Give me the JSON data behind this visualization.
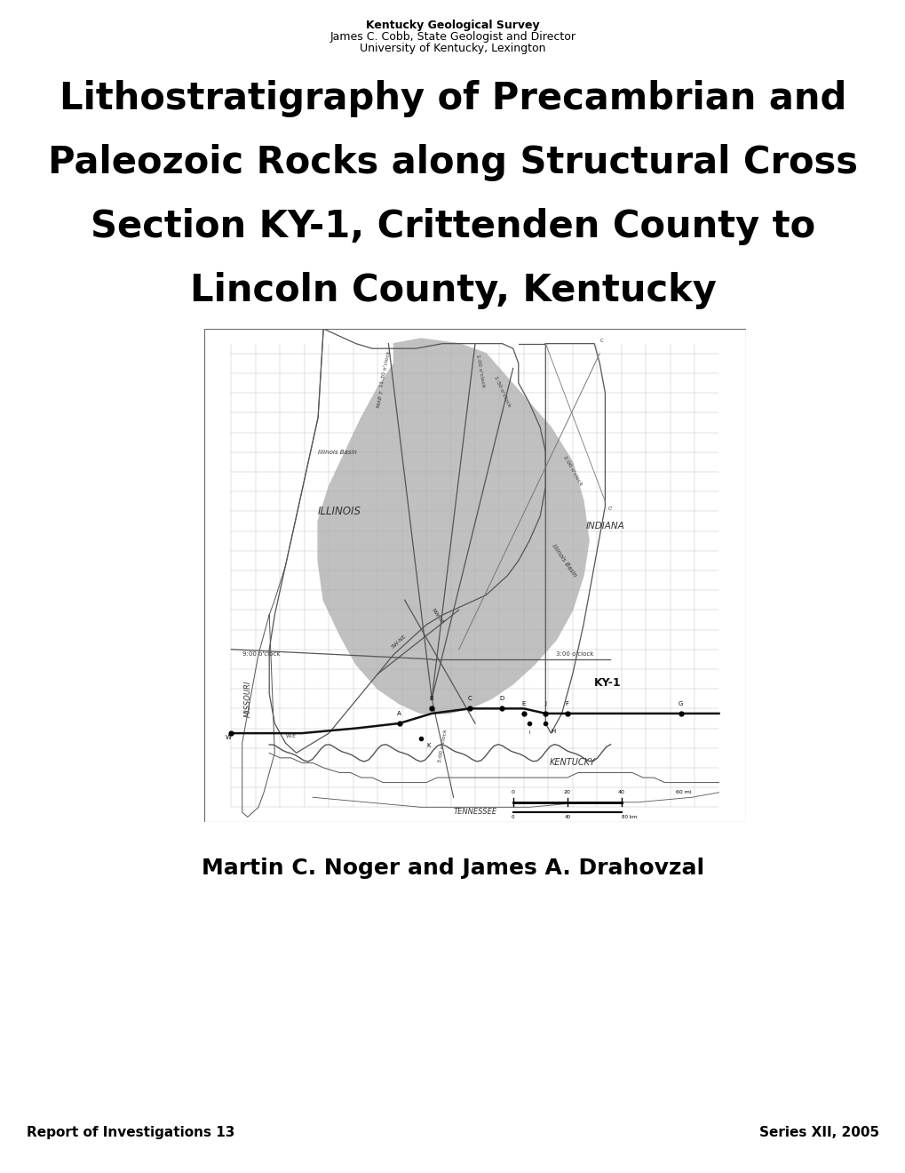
{
  "header_line1": "Kentucky Geological Survey",
  "header_line2": "James C. Cobb, State Geologist and Director",
  "header_line3": "University of Kentucky, Lexington",
  "title_line1": "Lithostratigraphy of Precambrian and",
  "title_line2": "Paleozoic Rocks along Structural Cross",
  "title_line3": "Section KY-1, Crittenden County to",
  "title_line4": "Lincoln County, Kentucky",
  "author_line": "Martin C. Noger and James A. Drahovzal",
  "footer_left": "Report of Investigations 13",
  "footer_right": "Series XII, 2005",
  "bg_color": "#ffffff",
  "text_color": "#000000",
  "map_border_color": "#666666",
  "map_fill_color": "#c0c0c0",
  "county_line_color": "#aaaaaa",
  "state_outline_color": "#555555",
  "section_line_color": "#111111",
  "header_fontsize": 9,
  "title_fontsize": 30,
  "author_fontsize": 18,
  "footer_fontsize": 11
}
